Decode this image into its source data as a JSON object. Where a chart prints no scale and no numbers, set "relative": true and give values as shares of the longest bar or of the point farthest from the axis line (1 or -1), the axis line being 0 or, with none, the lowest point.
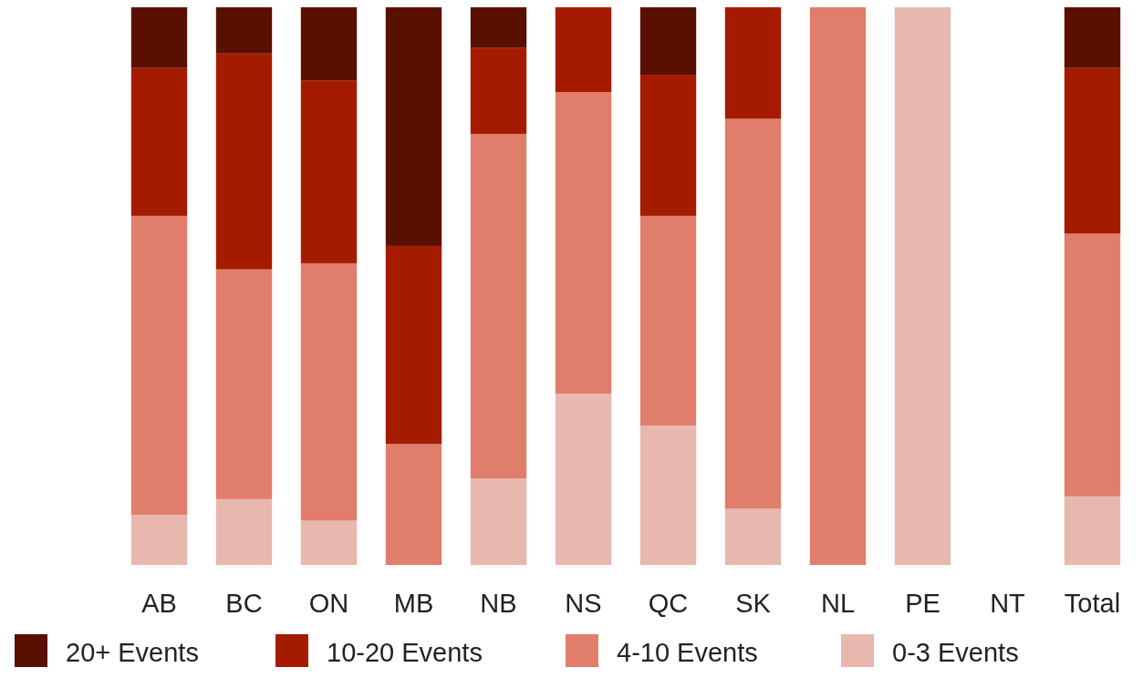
{
  "chart_data": {
    "type": "bar",
    "stacked": true,
    "relative": true,
    "legend": "bottom",
    "categories": [
      "AB",
      "BC",
      "ON",
      "MB",
      "NB",
      "NS",
      "QC",
      "SK",
      "NL",
      "PE",
      "NT",
      "Total"
    ],
    "series": [
      {
        "name": "0-3 Events",
        "color": "#e8b7ad",
        "values": [
          0.09,
          0.118,
          0.08,
          0,
          0.155,
          0.307,
          0.25,
          0.101,
          0,
          1,
          null,
          0.123
        ]
      },
      {
        "name": "4-10 Events",
        "color": "#e07e6b",
        "values": [
          0.536,
          0.412,
          0.461,
          0.217,
          0.618,
          0.541,
          0.376,
          0.699,
          1,
          0,
          null,
          0.471
        ]
      },
      {
        "name": "10-20 Events",
        "color": "#a51b00",
        "values": [
          0.265,
          0.387,
          0.328,
          0.355,
          0.154,
          0.152,
          0.253,
          0.2,
          0,
          0,
          null,
          0.297
        ]
      },
      {
        "name": "20+ Events",
        "color": "#5a1000",
        "values": [
          0.109,
          0.083,
          0.131,
          0.428,
          0.073,
          0,
          0.121,
          0,
          0,
          0,
          null,
          0.109
        ]
      }
    ]
  }
}
